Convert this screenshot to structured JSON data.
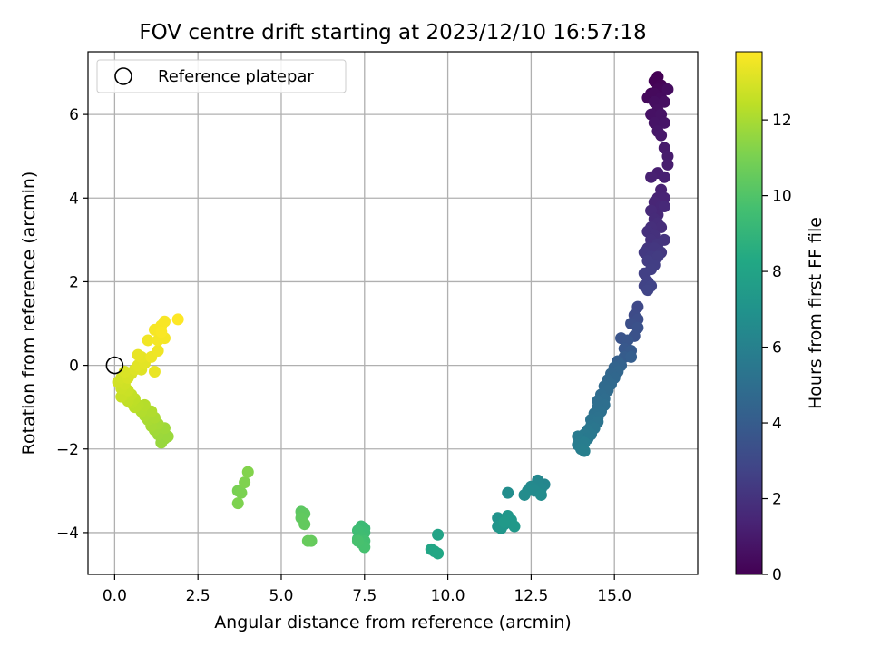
{
  "chart_data": {
    "type": "scatter",
    "title": "FOV centre drift starting at 2023/12/10 16:57:18",
    "xlabel": "Angular distance from reference (arcmin)",
    "ylabel": "Rotation from reference (arcmin)",
    "xlim": [
      -0.8,
      17.5
    ],
    "ylim": [
      -5.0,
      7.5
    ],
    "x_ticks": [
      0.0,
      2.5,
      5.0,
      7.5,
      10.0,
      12.5,
      15.0
    ],
    "x_tick_labels": [
      "0.0",
      "2.5",
      "5.0",
      "7.5",
      "10.0",
      "12.5",
      "15.0"
    ],
    "y_ticks": [
      -4,
      -2,
      0,
      2,
      4,
      6
    ],
    "y_tick_labels": [
      "−4",
      "−2",
      "0",
      "2",
      "4",
      "6"
    ],
    "grid": true,
    "legend": {
      "position": "upper-left",
      "entries": [
        {
          "label": "Reference platepar",
          "marker": "open-circle"
        }
      ]
    },
    "reference_point": {
      "x": 0.0,
      "y": 0.0
    },
    "colorbar": {
      "label": "Hours from first FF file",
      "range": [
        0,
        13.8
      ],
      "ticks": [
        0,
        2,
        4,
        6,
        8,
        10,
        12
      ],
      "tick_labels": [
        "0",
        "2",
        "4",
        "6",
        "8",
        "10",
        "12"
      ],
      "colormap": "viridis"
    },
    "points": [
      [
        16.3,
        6.9,
        0.0
      ],
      [
        16.2,
        6.8,
        0.05
      ],
      [
        16.4,
        6.7,
        0.1
      ],
      [
        16.1,
        6.5,
        0.15
      ],
      [
        16.3,
        6.6,
        0.2
      ],
      [
        16.5,
        6.6,
        0.25
      ],
      [
        16.0,
        6.4,
        0.3
      ],
      [
        16.2,
        6.5,
        0.35
      ],
      [
        16.4,
        6.4,
        0.4
      ],
      [
        16.6,
        6.6,
        0.45
      ],
      [
        16.2,
        6.3,
        0.5
      ],
      [
        16.5,
        6.3,
        0.55
      ],
      [
        16.3,
        6.1,
        0.6
      ],
      [
        16.1,
        6.0,
        0.65
      ],
      [
        16.4,
        6.0,
        0.7
      ],
      [
        16.2,
        5.8,
        0.75
      ],
      [
        16.5,
        5.8,
        0.8
      ],
      [
        16.3,
        5.6,
        0.85
      ],
      [
        16.4,
        5.5,
        0.9
      ],
      [
        16.5,
        5.2,
        1.0
      ],
      [
        16.6,
        5.0,
        1.05
      ],
      [
        16.6,
        4.8,
        1.1
      ],
      [
        16.3,
        4.6,
        1.15
      ],
      [
        16.5,
        4.5,
        1.2
      ],
      [
        16.1,
        4.5,
        1.25
      ],
      [
        16.4,
        4.2,
        1.3
      ],
      [
        16.3,
        4.0,
        1.35
      ],
      [
        16.5,
        4.0,
        1.4
      ],
      [
        16.2,
        3.9,
        1.45
      ],
      [
        16.4,
        3.8,
        1.5
      ],
      [
        16.3,
        3.6,
        1.55
      ],
      [
        16.5,
        3.8,
        1.6
      ],
      [
        16.1,
        3.7,
        1.65
      ],
      [
        16.2,
        3.5,
        1.7
      ],
      [
        16.3,
        3.4,
        1.75
      ],
      [
        16.4,
        3.3,
        1.8
      ],
      [
        16.1,
        3.3,
        1.85
      ],
      [
        16.0,
        3.2,
        1.9
      ],
      [
        16.2,
        3.1,
        1.95
      ],
      [
        16.1,
        3.0,
        2.0
      ],
      [
        16.5,
        3.0,
        2.05
      ],
      [
        16.3,
        2.9,
        2.1
      ],
      [
        16.0,
        2.8,
        2.15
      ],
      [
        16.2,
        2.8,
        2.2
      ],
      [
        16.4,
        2.7,
        2.25
      ],
      [
        15.9,
        2.7,
        2.3
      ],
      [
        16.1,
        2.6,
        2.35
      ],
      [
        16.3,
        2.6,
        2.4
      ],
      [
        16.0,
        2.5,
        2.45
      ],
      [
        16.2,
        2.4,
        2.5
      ],
      [
        16.1,
        2.3,
        2.55
      ],
      [
        15.9,
        2.2,
        2.6
      ],
      [
        16.0,
        2.0,
        2.65
      ],
      [
        15.9,
        1.9,
        2.7
      ],
      [
        16.1,
        1.9,
        2.75
      ],
      [
        16.0,
        1.8,
        2.8
      ],
      [
        15.7,
        1.4,
        3.0
      ],
      [
        15.6,
        1.2,
        3.1
      ],
      [
        15.7,
        1.1,
        3.2
      ],
      [
        15.5,
        1.0,
        3.3
      ],
      [
        15.7,
        0.9,
        3.4
      ],
      [
        15.6,
        0.7,
        3.5
      ],
      [
        15.2,
        0.65,
        3.6
      ],
      [
        15.4,
        0.6,
        3.7
      ],
      [
        15.3,
        0.4,
        3.8
      ],
      [
        15.5,
        0.35,
        3.9
      ],
      [
        15.3,
        0.2,
        4.0
      ],
      [
        15.5,
        0.2,
        4.1
      ],
      [
        15.1,
        0.1,
        4.2
      ],
      [
        15.2,
        0.0,
        4.3
      ],
      [
        15.0,
        -0.05,
        4.4
      ],
      [
        15.1,
        -0.15,
        4.5
      ],
      [
        14.9,
        -0.2,
        4.55
      ],
      [
        15.0,
        -0.3,
        4.6
      ],
      [
        14.8,
        -0.35,
        4.65
      ],
      [
        14.9,
        -0.45,
        4.7
      ],
      [
        14.7,
        -0.5,
        4.75
      ],
      [
        14.8,
        -0.6,
        4.8
      ],
      [
        14.6,
        -0.7,
        4.85
      ],
      [
        14.7,
        -0.8,
        4.9
      ],
      [
        14.5,
        -0.85,
        4.95
      ],
      [
        14.7,
        -0.95,
        5.0
      ],
      [
        14.5,
        -1.0,
        5.05
      ],
      [
        14.6,
        -1.1,
        5.1
      ],
      [
        14.4,
        -1.15,
        5.15
      ],
      [
        14.5,
        -1.25,
        5.2
      ],
      [
        14.3,
        -1.3,
        5.25
      ],
      [
        14.5,
        -1.35,
        5.3
      ],
      [
        14.3,
        -1.45,
        5.35
      ],
      [
        14.4,
        -1.5,
        5.4
      ],
      [
        14.2,
        -1.55,
        5.45
      ],
      [
        14.3,
        -1.65,
        5.5
      ],
      [
        14.1,
        -1.65,
        5.55
      ],
      [
        14.2,
        -1.75,
        5.6
      ],
      [
        13.9,
        -1.7,
        5.65
      ],
      [
        14.0,
        -1.8,
        5.7
      ],
      [
        13.9,
        -1.9,
        5.75
      ],
      [
        14.1,
        -1.85,
        5.8
      ],
      [
        14.0,
        -2.0,
        5.85
      ],
      [
        14.1,
        -2.05,
        5.9
      ],
      [
        12.9,
        -2.85,
        6.3
      ],
      [
        12.7,
        -2.75,
        6.35
      ],
      [
        12.8,
        -2.95,
        6.4
      ],
      [
        12.5,
        -2.9,
        6.45
      ],
      [
        12.6,
        -3.0,
        6.5
      ],
      [
        12.4,
        -3.0,
        6.55
      ],
      [
        12.3,
        -3.1,
        6.6
      ],
      [
        12.8,
        -3.1,
        6.65
      ],
      [
        11.8,
        -3.05,
        6.7
      ],
      [
        11.5,
        -3.65,
        7.0
      ],
      [
        11.6,
        -3.75,
        7.05
      ],
      [
        11.7,
        -3.8,
        7.1
      ],
      [
        11.5,
        -3.85,
        7.15
      ],
      [
        11.6,
        -3.9,
        7.2
      ],
      [
        11.8,
        -3.6,
        7.25
      ],
      [
        11.9,
        -3.7,
        7.3
      ],
      [
        12.0,
        -3.85,
        7.35
      ],
      [
        11.7,
        -3.75,
        7.4
      ],
      [
        9.7,
        -4.05,
        8.0
      ],
      [
        9.5,
        -4.4,
        8.1
      ],
      [
        9.6,
        -4.45,
        8.15
      ],
      [
        9.7,
        -4.5,
        8.2
      ],
      [
        7.5,
        -3.9,
        9.3
      ],
      [
        7.4,
        -3.85,
        9.35
      ],
      [
        7.5,
        -4.0,
        9.4
      ],
      [
        7.3,
        -3.95,
        9.45
      ],
      [
        7.4,
        -4.1,
        9.5
      ],
      [
        7.3,
        -4.15,
        9.55
      ],
      [
        7.5,
        -4.2,
        9.6
      ],
      [
        7.4,
        -4.25,
        9.65
      ],
      [
        7.5,
        -4.35,
        9.7
      ],
      [
        7.3,
        -4.2,
        9.75
      ],
      [
        5.6,
        -3.5,
        10.3
      ],
      [
        5.7,
        -3.55,
        10.35
      ],
      [
        5.6,
        -3.65,
        10.4
      ],
      [
        5.7,
        -3.8,
        10.45
      ],
      [
        5.9,
        -4.2,
        10.5
      ],
      [
        5.8,
        -4.2,
        10.55
      ],
      [
        3.7,
        -3.0,
        11.0
      ],
      [
        3.8,
        -3.05,
        11.05
      ],
      [
        3.7,
        -3.3,
        11.1
      ],
      [
        3.9,
        -2.8,
        11.15
      ],
      [
        4.0,
        -2.55,
        11.2
      ],
      [
        1.5,
        -1.75,
        11.6
      ],
      [
        1.4,
        -1.85,
        11.65
      ],
      [
        1.6,
        -1.7,
        11.7
      ],
      [
        1.3,
        -1.65,
        11.75
      ],
      [
        1.5,
        -1.5,
        11.8
      ],
      [
        1.2,
        -1.55,
        11.85
      ],
      [
        1.3,
        -1.4,
        11.9
      ],
      [
        1.1,
        -1.45,
        11.95
      ],
      [
        1.0,
        -1.3,
        12.0
      ],
      [
        1.2,
        -1.25,
        12.05
      ],
      [
        0.9,
        -1.2,
        12.1
      ],
      [
        1.1,
        -1.1,
        12.15
      ],
      [
        0.8,
        -1.1,
        12.2
      ],
      [
        0.9,
        -0.95,
        12.25
      ],
      [
        0.7,
        -0.95,
        12.3
      ],
      [
        0.6,
        -1.0,
        12.35
      ],
      [
        0.5,
        -0.9,
        12.4
      ],
      [
        0.6,
        -0.8,
        12.45
      ],
      [
        0.4,
        -0.85,
        12.5
      ],
      [
        0.5,
        -0.7,
        12.55
      ],
      [
        0.3,
        -0.7,
        12.6
      ],
      [
        0.2,
        -0.75,
        12.65
      ],
      [
        0.4,
        -0.6,
        12.7
      ],
      [
        0.2,
        -0.55,
        12.75
      ],
      [
        0.3,
        -0.45,
        12.8
      ],
      [
        0.1,
        -0.4,
        12.85
      ],
      [
        0.2,
        -0.3,
        12.9
      ],
      [
        0.4,
        -0.3,
        12.95
      ],
      [
        0.5,
        -0.2,
        13.0
      ],
      [
        0.3,
        -0.15,
        13.05
      ],
      [
        0.6,
        -0.1,
        13.1
      ],
      [
        0.8,
        -0.1,
        13.15
      ],
      [
        0.7,
        0.0,
        13.2
      ],
      [
        0.9,
        0.05,
        13.25
      ],
      [
        0.8,
        0.2,
        13.3
      ],
      [
        0.7,
        0.25,
        13.35
      ],
      [
        1.2,
        -0.15,
        13.4
      ],
      [
        1.1,
        0.2,
        13.45
      ],
      [
        1.3,
        0.35,
        13.5
      ],
      [
        1.0,
        0.6,
        13.55
      ],
      [
        1.3,
        0.6,
        13.6
      ],
      [
        1.5,
        0.65,
        13.62
      ],
      [
        1.2,
        0.85,
        13.65
      ],
      [
        1.4,
        0.95,
        13.68
      ],
      [
        1.5,
        1.05,
        13.7
      ],
      [
        1.4,
        0.8,
        13.72
      ],
      [
        1.9,
        1.1,
        13.8
      ]
    ]
  }
}
